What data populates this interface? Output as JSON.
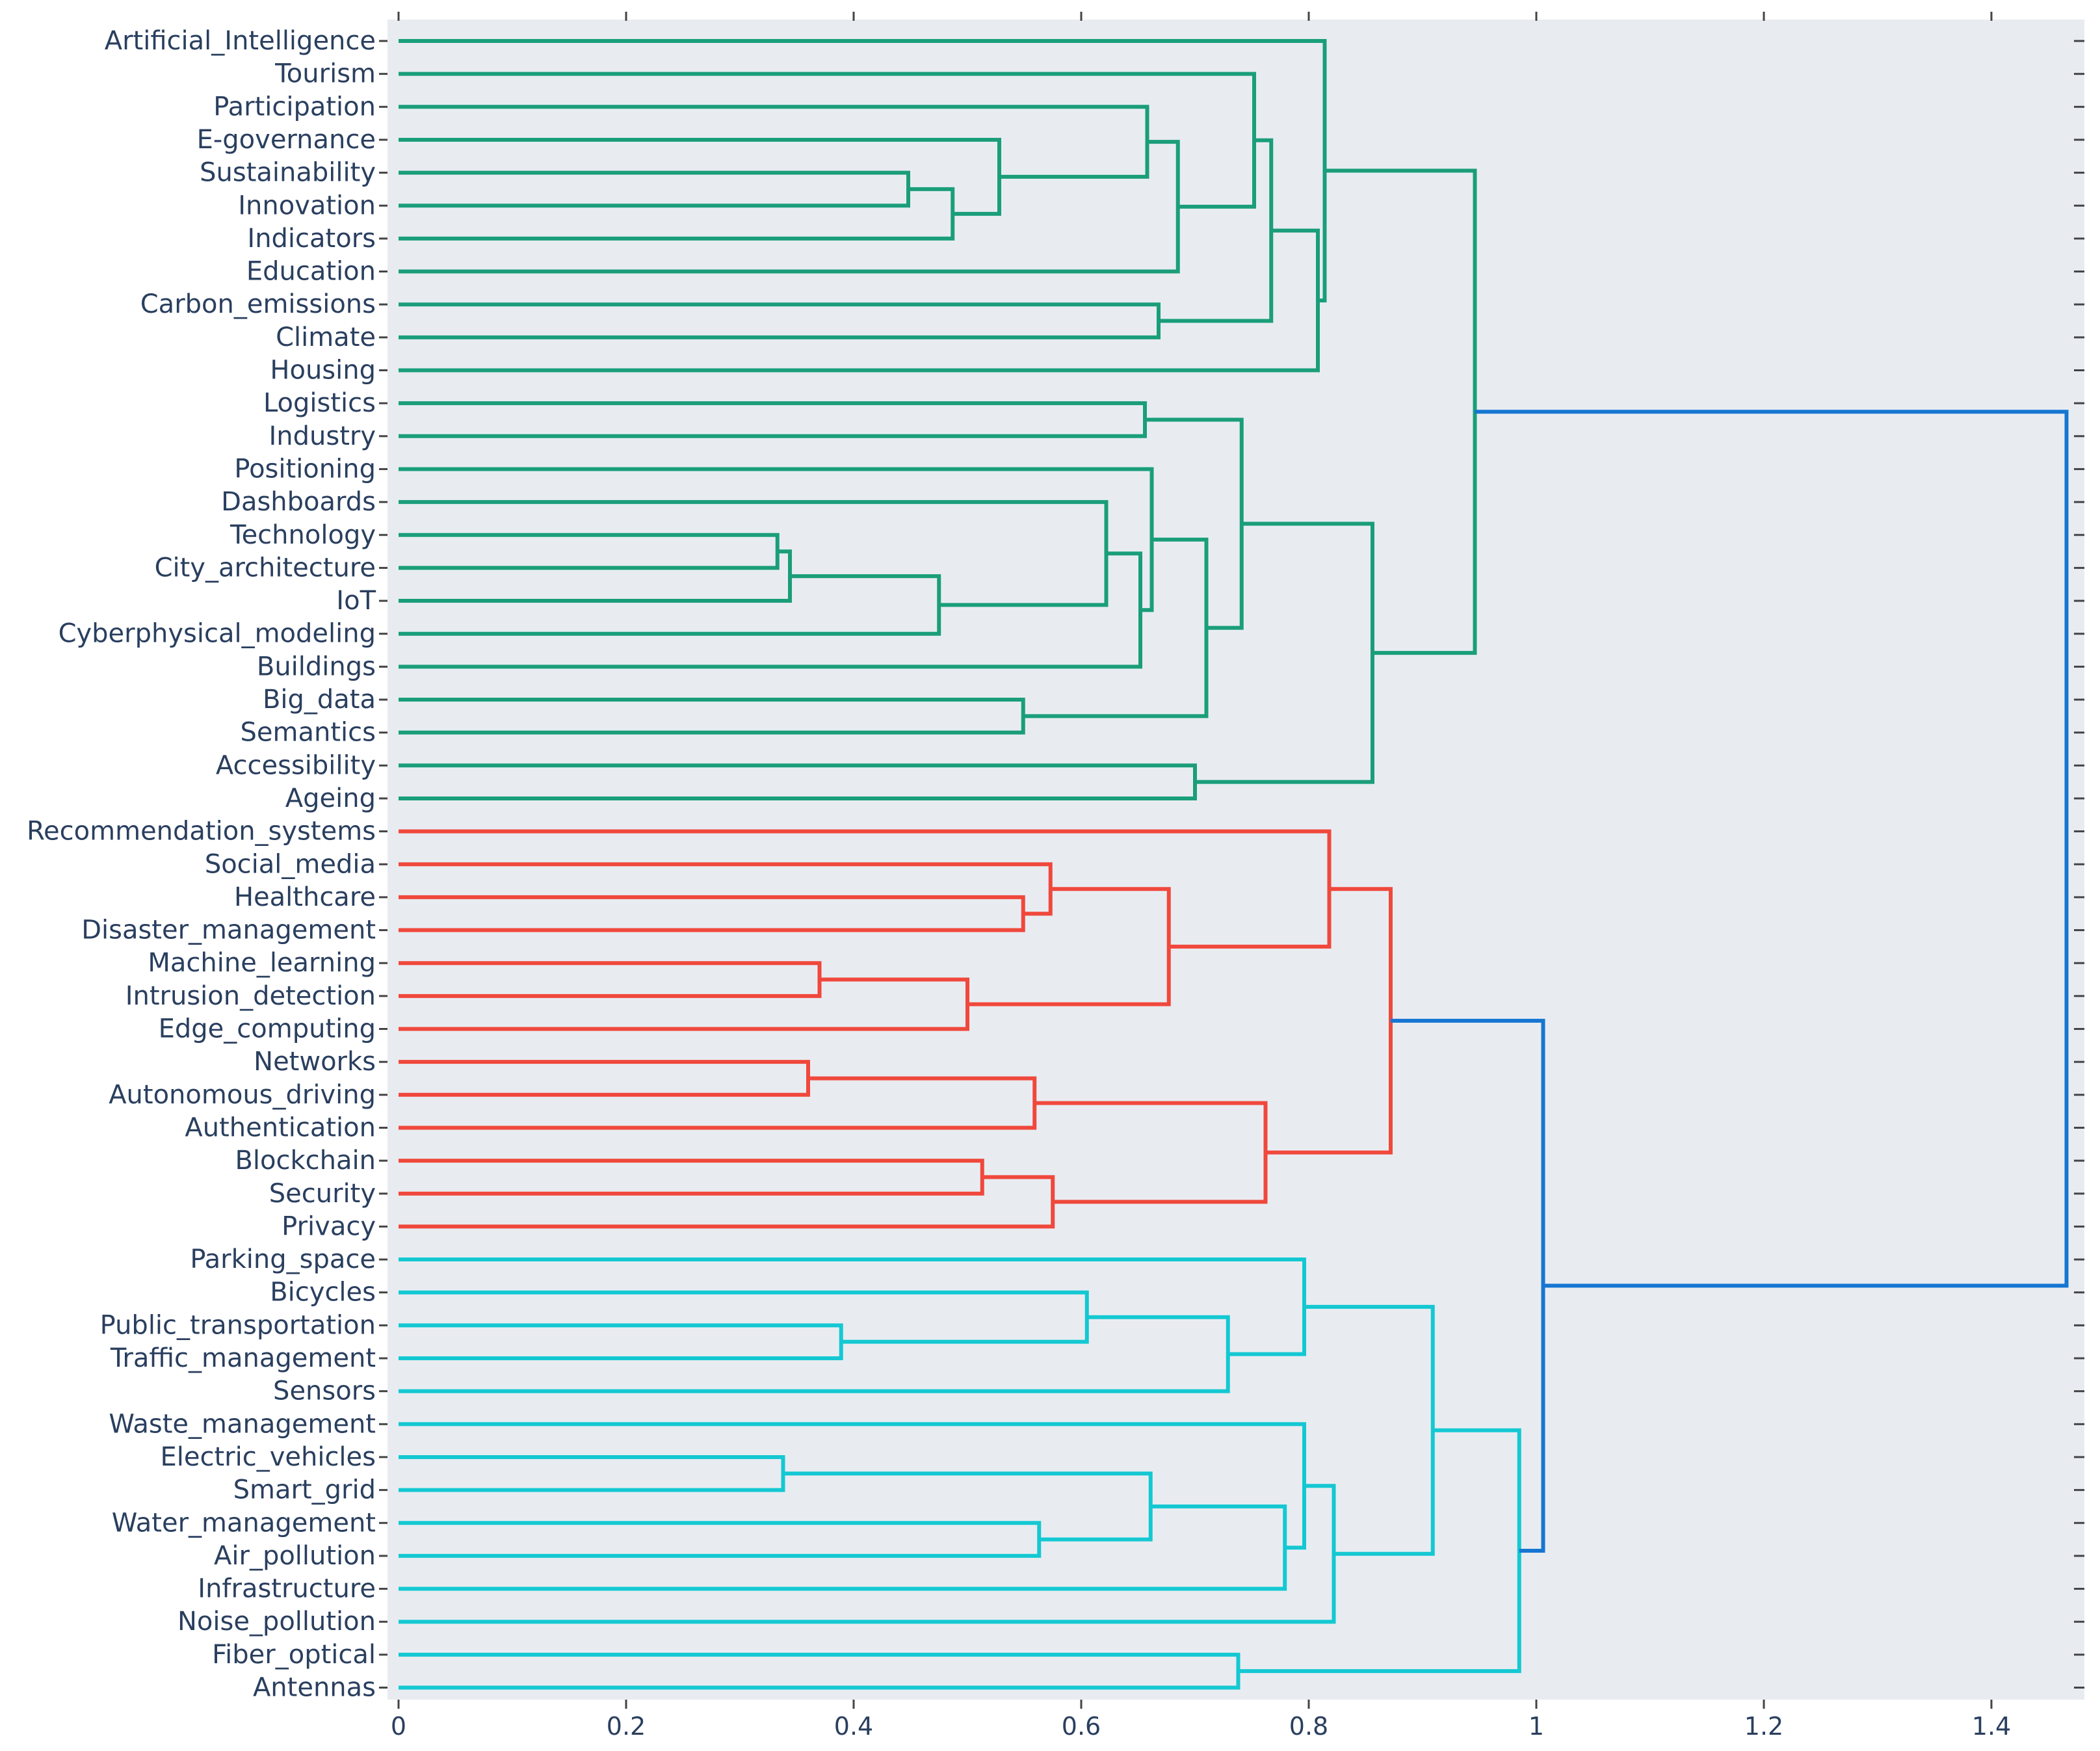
{
  "chart_data": {
    "type": "dendrogram",
    "orientation": "horizontal",
    "xlim": [
      0,
      1.47
    ],
    "x_ticks": [
      0,
      0.2,
      0.4,
      0.6,
      0.8,
      1,
      1.2,
      1.4
    ],
    "x_tick_labels": [
      "0",
      "0.2",
      "0.4",
      "0.6",
      "0.8",
      "1",
      "1.2",
      "1.4"
    ],
    "leaves": [
      "Artificial_Intelligence",
      "Tourism",
      "Participation",
      "E-governance",
      "Sustainability",
      "Innovation",
      "Indicators",
      "Education",
      "Carbon_emissions",
      "Climate",
      "Housing",
      "Logistics",
      "Industry",
      "Positioning",
      "Dashboards",
      "Technology",
      "City_architecture",
      "IoT",
      "Cyberphysical_modeling",
      "Buildings",
      "Big_data",
      "Semantics",
      "Accessibility",
      "Ageing",
      "Recommendation_systems",
      "Social_media",
      "Healthcare",
      "Disaster_management",
      "Machine_learning",
      "Intrusion_detection",
      "Edge_computing",
      "Networks",
      "Autonomous_driving",
      "Authentication",
      "Blockchain",
      "Security",
      "Privacy",
      "Parking_space",
      "Bicycles",
      "Public_transportation",
      "Traffic_management",
      "Sensors",
      "Waste_management",
      "Electric_vehicles",
      "Smart_grid",
      "Water_management",
      "Air_pollution",
      "Infrastructure",
      "Noise_pollution",
      "Fiber_optical",
      "Antennas"
    ],
    "colors": {
      "green": "#1a9e7a",
      "red": "#f0483c",
      "cyan": "#14c8d2",
      "blue": "#1676d2",
      "plot_bg": "#e8ecf1"
    },
    "merges": [
      {
        "id": "G1",
        "a": "Sustainability",
        "b": "Innovation",
        "h": 0.448,
        "color": "green"
      },
      {
        "id": "G2",
        "a": "G1",
        "b": "Indicators",
        "h": 0.487,
        "color": "green"
      },
      {
        "id": "G3",
        "a": "E-governance",
        "b": "G2",
        "h": 0.528,
        "color": "green"
      },
      {
        "id": "G4",
        "a": "Participation",
        "b": "G3",
        "h": 0.658,
        "color": "green"
      },
      {
        "id": "G5",
        "a": "G4",
        "b": "Education",
        "h": 0.685,
        "color": "green"
      },
      {
        "id": "G6",
        "a": "Tourism",
        "b": "G5",
        "h": 0.752,
        "color": "green"
      },
      {
        "id": "G7",
        "a": "Carbon_emissions",
        "b": "Climate",
        "h": 0.668,
        "color": "green"
      },
      {
        "id": "G8",
        "a": "G6",
        "b": "G7",
        "h": 0.767,
        "color": "green"
      },
      {
        "id": "G9",
        "a": "G8",
        "b": "Housing",
        "h": 0.808,
        "color": "green"
      },
      {
        "id": "G10",
        "a": "Artificial_Intelligence",
        "b": "G9",
        "h": 0.814,
        "color": "green"
      },
      {
        "id": "G11",
        "a": "Technology",
        "b": "City_architecture",
        "h": 0.333,
        "color": "green"
      },
      {
        "id": "G12",
        "a": "G11",
        "b": "IoT",
        "h": 0.344,
        "color": "green"
      },
      {
        "id": "G13",
        "a": "G12",
        "b": "Cyberphysical_modeling",
        "h": 0.475,
        "color": "green"
      },
      {
        "id": "G14",
        "a": "Dashboards",
        "b": "G13",
        "h": 0.622,
        "color": "green"
      },
      {
        "id": "G15",
        "a": "G14",
        "b": "Buildings",
        "h": 0.652,
        "color": "green"
      },
      {
        "id": "G16",
        "a": "Positioning",
        "b": "G15",
        "h": 0.662,
        "color": "green"
      },
      {
        "id": "G17",
        "a": "Big_data",
        "b": "Semantics",
        "h": 0.549,
        "color": "green"
      },
      {
        "id": "G18",
        "a": "G16",
        "b": "G17",
        "h": 0.71,
        "color": "green"
      },
      {
        "id": "G19",
        "a": "Logistics",
        "b": "Industry",
        "h": 0.656,
        "color": "green"
      },
      {
        "id": "G20",
        "a": "G19",
        "b": "G18",
        "h": 0.741,
        "color": "green"
      },
      {
        "id": "G21",
        "a": "Accessibility",
        "b": "Ageing",
        "h": 0.7,
        "color": "green"
      },
      {
        "id": "G22",
        "a": "G20",
        "b": "G21",
        "h": 0.856,
        "color": "green"
      },
      {
        "id": "G23",
        "a": "G10",
        "b": "G22",
        "h": 0.946,
        "color": "green"
      },
      {
        "id": "R1",
        "a": "Healthcare",
        "b": "Disaster_management",
        "h": 0.549,
        "color": "red"
      },
      {
        "id": "R2",
        "a": "Social_media",
        "b": "R1",
        "h": 0.573,
        "color": "red"
      },
      {
        "id": "R3",
        "a": "Machine_learning",
        "b": "Intrusion_detection",
        "h": 0.37,
        "color": "red"
      },
      {
        "id": "R4",
        "a": "R3",
        "b": "Edge_computing",
        "h": 0.5,
        "color": "red"
      },
      {
        "id": "R5",
        "a": "R2",
        "b": "R4",
        "h": 0.677,
        "color": "red"
      },
      {
        "id": "R6",
        "a": "Recommendation_systems",
        "b": "R5",
        "h": 0.818,
        "color": "red"
      },
      {
        "id": "R7",
        "a": "Networks",
        "b": "Autonomous_driving",
        "h": 0.36,
        "color": "red"
      },
      {
        "id": "R8",
        "a": "R7",
        "b": "Authentication",
        "h": 0.559,
        "color": "red"
      },
      {
        "id": "R9",
        "a": "Blockchain",
        "b": "Security",
        "h": 0.513,
        "color": "red"
      },
      {
        "id": "R10",
        "a": "R9",
        "b": "Privacy",
        "h": 0.575,
        "color": "red"
      },
      {
        "id": "R11",
        "a": "R8",
        "b": "R10",
        "h": 0.762,
        "color": "red"
      },
      {
        "id": "R12",
        "a": "R6",
        "b": "R11",
        "h": 0.872,
        "color": "red"
      },
      {
        "id": "C1",
        "a": "Public_transportation",
        "b": "Traffic_management",
        "h": 0.389,
        "color": "cyan"
      },
      {
        "id": "C2",
        "a": "Bicycles",
        "b": "C1",
        "h": 0.605,
        "color": "cyan"
      },
      {
        "id": "C3",
        "a": "C2",
        "b": "Sensors",
        "h": 0.729,
        "color": "cyan"
      },
      {
        "id": "C4",
        "a": "Parking_space",
        "b": "C3",
        "h": 0.796,
        "color": "cyan"
      },
      {
        "id": "C5",
        "a": "Electric_vehicles",
        "b": "Smart_grid",
        "h": 0.338,
        "color": "cyan"
      },
      {
        "id": "C6",
        "a": "Water_management",
        "b": "Air_pollution",
        "h": 0.563,
        "color": "cyan"
      },
      {
        "id": "C7",
        "a": "C5",
        "b": "C6",
        "h": 0.661,
        "color": "cyan"
      },
      {
        "id": "C8",
        "a": "C7",
        "b": "Infrastructure",
        "h": 0.779,
        "color": "cyan"
      },
      {
        "id": "C9",
        "a": "Waste_management",
        "b": "C8",
        "h": 0.796,
        "color": "cyan"
      },
      {
        "id": "C10",
        "a": "C9",
        "b": "Noise_pollution",
        "h": 0.822,
        "color": "cyan"
      },
      {
        "id": "C11",
        "a": "C4",
        "b": "C10",
        "h": 0.909,
        "color": "cyan"
      },
      {
        "id": "C12",
        "a": "Fiber_optical",
        "b": "Antennas",
        "h": 0.738,
        "color": "cyan"
      },
      {
        "id": "C13",
        "a": "C11",
        "b": "C12",
        "h": 0.985,
        "color": "cyan"
      },
      {
        "id": "B1",
        "a": "R12",
        "b": "C13",
        "h": 1.006,
        "color": "blue"
      },
      {
        "id": "B2",
        "a": "G23",
        "b": "B1",
        "h": 1.466,
        "color": "blue"
      }
    ]
  }
}
